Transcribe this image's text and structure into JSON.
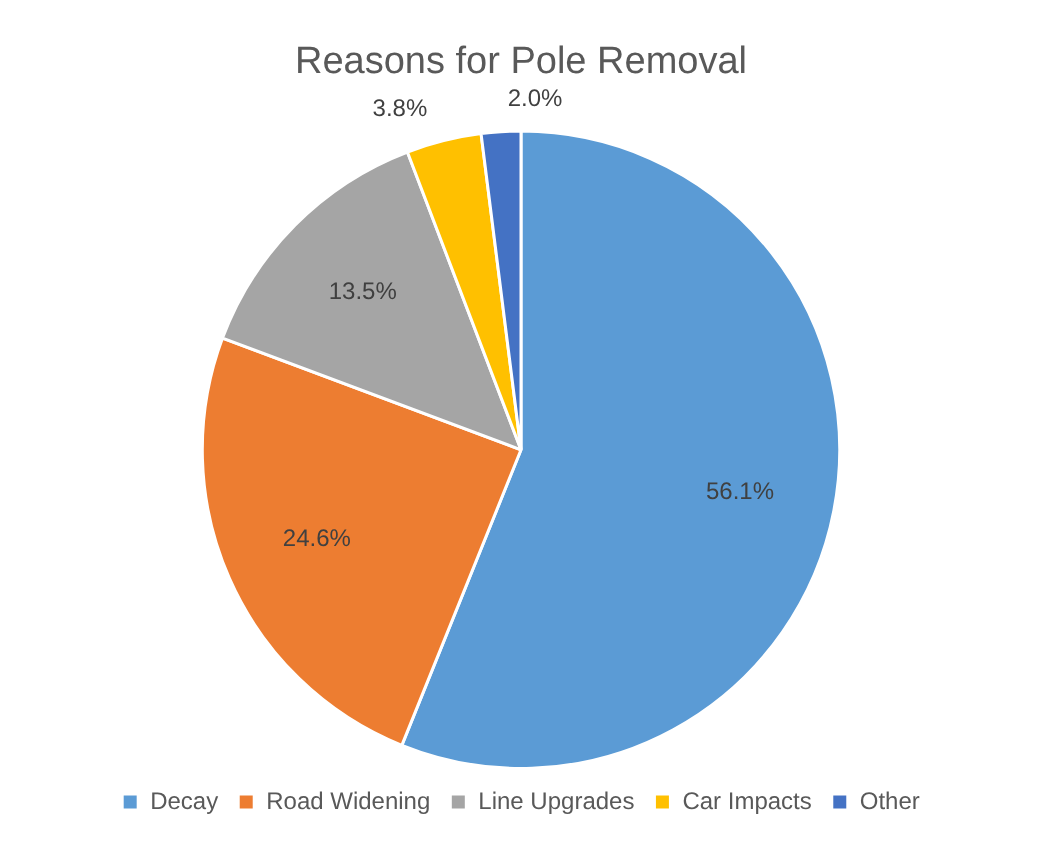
{
  "chart_data": {
    "type": "pie",
    "title": "Reasons for Pole Removal",
    "categories": [
      "Decay",
      "Road Widening",
      "Line Upgrades",
      "Car Impacts",
      "Other"
    ],
    "values": [
      56.1,
      24.6,
      13.5,
      3.8,
      2.0
    ],
    "value_labels": [
      "56.1%",
      "24.6%",
      "13.5%",
      "3.8%",
      "2.0%"
    ],
    "colors": [
      "#5b9bd5",
      "#ed7d31",
      "#a5a5a5",
      "#ffc000",
      "#4472c4"
    ],
    "legend": "bottom"
  }
}
